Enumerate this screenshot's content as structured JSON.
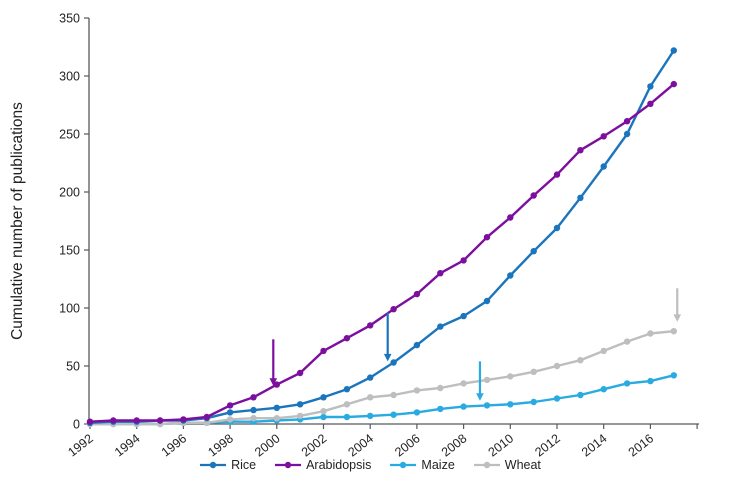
{
  "figure": {
    "background": "#ffffff",
    "axis_color": "#58595b",
    "text_color": "#231f20"
  },
  "chart_data": {
    "type": "line",
    "title": "",
    "xlabel": "",
    "ylabel": "Cumulative number of publications",
    "x": [
      1992,
      1993,
      1994,
      1995,
      1996,
      1997,
      1998,
      1999,
      2000,
      2001,
      2002,
      2003,
      2004,
      2005,
      2006,
      2007,
      2008,
      2009,
      2010,
      2011,
      2012,
      2013,
      2014,
      2015,
      2016,
      2017
    ],
    "x_ticks": [
      1992,
      1994,
      1996,
      1998,
      2000,
      2002,
      2004,
      2006,
      2008,
      2010,
      2012,
      2014,
      2016
    ],
    "x_axis_end_tick": 2018,
    "ylim": [
      0,
      350
    ],
    "y_ticks": [
      0,
      50,
      100,
      150,
      200,
      250,
      300,
      350
    ],
    "grid": false,
    "legend_position": "bottom-center",
    "series": [
      {
        "name": "Rice",
        "color": "#1B75BC",
        "values": [
          1,
          2,
          2,
          3,
          3,
          5,
          10,
          12,
          14,
          17,
          23,
          30,
          40,
          53,
          68,
          84,
          93,
          106,
          128,
          149,
          169,
          195,
          222,
          250,
          291,
          322
        ]
      },
      {
        "name": "Arabidopsis",
        "color": "#7D0F9E",
        "values": [
          2,
          3,
          3,
          3,
          4,
          6,
          16,
          23,
          34,
          44,
          63,
          74,
          85,
          99,
          112,
          130,
          141,
          161,
          178,
          197,
          215,
          236,
          248,
          261,
          276,
          293
        ]
      },
      {
        "name": "Maize",
        "color": "#29ABE2",
        "values": [
          0,
          0,
          0,
          0,
          1,
          1,
          2,
          2,
          3,
          4,
          6,
          6,
          7,
          8,
          10,
          13,
          15,
          16,
          17,
          19,
          22,
          25,
          30,
          35,
          37,
          42
        ]
      },
      {
        "name": "Wheat",
        "color": "#BDBEC0",
        "values": [
          0,
          0,
          0,
          0,
          1,
          1,
          4,
          5,
          5,
          7,
          11,
          17,
          23,
          25,
          29,
          31,
          35,
          38,
          41,
          45,
          50,
          55,
          63,
          71,
          78,
          80
        ]
      }
    ],
    "draw_order": [
      "Maize",
      "Wheat",
      "Rice",
      "Arabidopsis"
    ],
    "annotations": [
      {
        "type": "arrow",
        "series": "Arabidopsis",
        "color": "#7D0F9E",
        "year_x": 1999.85,
        "tail_value": 73,
        "tip_value": 33
      },
      {
        "type": "arrow",
        "series": "Rice",
        "color": "#1B75BC",
        "year_x": 2004.75,
        "tail_value": 96,
        "tip_value": 54
      },
      {
        "type": "arrow",
        "series": "Maize",
        "color": "#29ABE2",
        "year_x": 2008.7,
        "tail_value": 54,
        "tip_value": 20
      },
      {
        "type": "arrow",
        "series": "Wheat",
        "color": "#BDBEC0",
        "year_x": 2017.15,
        "tail_value": 117,
        "tip_value": 88
      }
    ]
  }
}
